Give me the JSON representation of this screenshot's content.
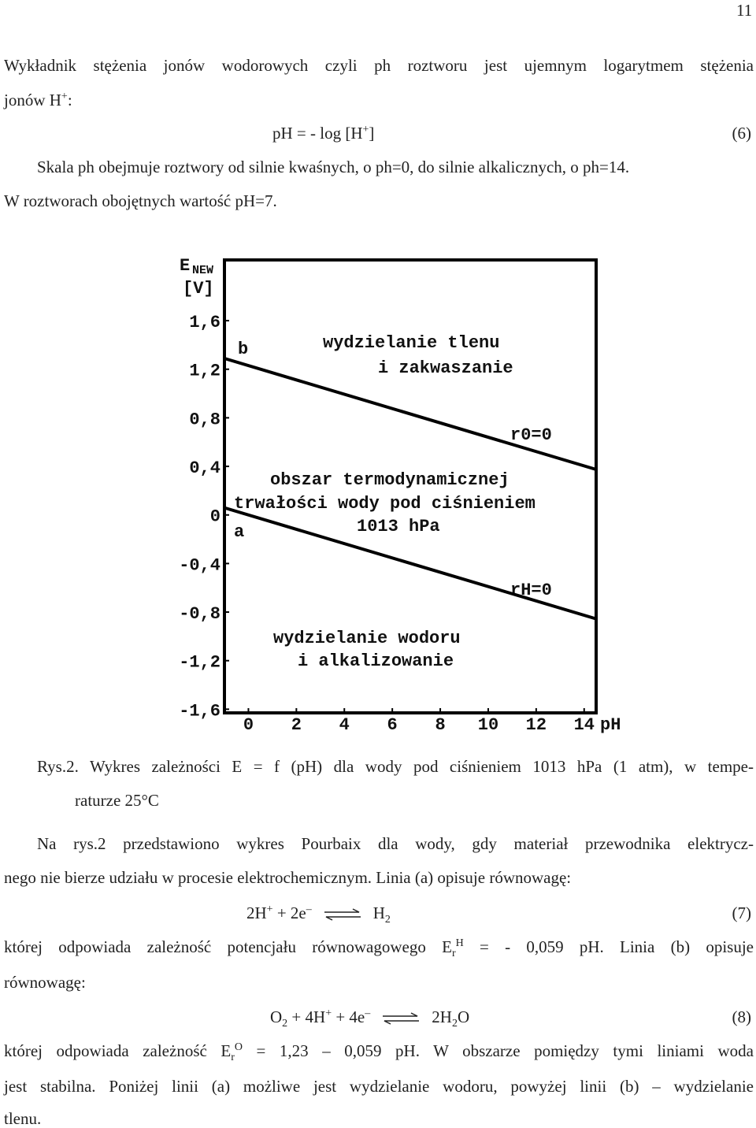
{
  "page_number": "11",
  "lines": [
    [
      "Wykładnik stężenia jonów wodorowych czyli ph roztworu jest ujemnym logarytmem stężenia"
    ],
    [
      "jonów H",
      "+",
      ":"
    ],
    [
      "pH = - log [H",
      "+",
      "]",
      "(6)"
    ],
    [
      "Skala ph obejmuje roztwory od silnie kwaśnych, o ph=0, do silnie alkalicznych, o ph=14."
    ],
    [
      "W roztworach obojętnych wartość pH=7."
    ],
    [
      "Rys.2. Wykres zależności E = f (pH) dla wody pod ciśnieniem 1013 hPa (1 atm), w tempe-"
    ],
    [
      "raturze 25°C"
    ],
    [
      "Na rys.2 przedstawiono wykres Pourbaix dla wody, gdy materiał przewodnika elektrycz-"
    ],
    [
      "nego nie bierze udziału w procesie elektrochemicznym. Linia (a) opisuje równowagę:"
    ],
    [
      "2H",
      "+",
      " + 2e",
      "–",
      "H",
      "2",
      "(7)"
    ],
    [
      "której odpowiada zależność potencjału równowagowego E",
      "r",
      "H",
      " = - 0,059 pH. Linia (b) opisuje"
    ],
    [
      "równowagę:"
    ],
    [
      "O",
      "2",
      " + 4H",
      "+",
      " + 4e",
      "–",
      "2H",
      "2",
      "O",
      "(8)"
    ],
    [
      "której odpowiada zależność E",
      "r",
      "O",
      " = 1,23 – 0,059 pH. W obszarze pomiędzy tymi liniami woda"
    ],
    [
      "jest stabilna. Poniżej linii (a) możliwe jest wydzielanie wodoru, powyżej linii (b) – wydzielanie"
    ],
    [
      "tlenu."
    ]
  ],
  "chart_data": {
    "type": "line",
    "y_label": [
      "E",
      "NEW",
      "[V]"
    ],
    "x_label": "pH",
    "x": [
      -1,
      14.5
    ],
    "series": [
      {
        "name": "b",
        "color": "#000000",
        "values": [
          1.289,
          0.3745
        ]
      },
      {
        "name": "a",
        "color": "#000000",
        "values": [
          0.059,
          -0.8555
        ]
      }
    ],
    "xlim": [
      -1,
      14.5
    ],
    "ylim": [
      -1.63,
      2.1
    ],
    "xticks": [
      0,
      2,
      4,
      6,
      8,
      10,
      12,
      14
    ],
    "yticks": [
      {
        "value": 1.6,
        "label": "1,6"
      },
      {
        "value": 1.2,
        "label": "1,2"
      },
      {
        "value": 0.8,
        "label": "0,8"
      },
      {
        "value": 0.4,
        "label": "0,4"
      },
      0,
      {
        "value": -0.4,
        "label": "-0,4"
      },
      {
        "value": -0.8,
        "label": "-0,8"
      },
      {
        "value": -1.2,
        "label": "-1,2"
      },
      {
        "value": -1.6,
        "label": "-1,6"
      }
    ],
    "annotations": [
      "wydzielanie tlenu",
      "i zakwaszanie",
      "r0=0",
      "obszar termodynamicznej",
      "trwałości wody pod ciśnieniem",
      "1013 hPa",
      "rH=0",
      "wydzielanie wodoru",
      "i alkalizowanie"
    ]
  }
}
